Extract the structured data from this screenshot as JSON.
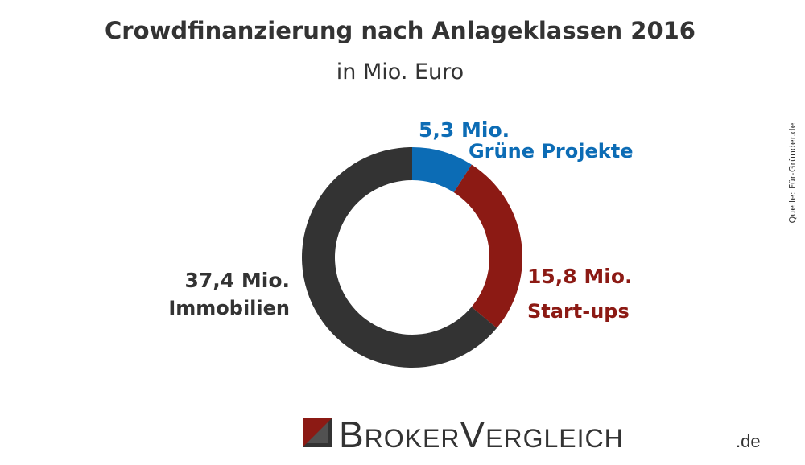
{
  "chart_data": {
    "type": "donut",
    "title": "Crowdfinanzierung nach Anlageklassen 2016",
    "subtitle": "in Mio. Euro",
    "categories": [
      "Grüne Projekte",
      "Start-ups",
      "Immobilien"
    ],
    "values": [
      5.3,
      15.8,
      37.4
    ],
    "value_labels": [
      "5,3 Mio.",
      "15,8 Mio.",
      "37,4 Mio."
    ],
    "colors": [
      "#0c6cb5",
      "#8c1a14",
      "#333333"
    ],
    "source": "Quelle: Für-Gründer.de"
  },
  "logo": {
    "name": "BrokerVergleich",
    "suffix": ".de"
  }
}
